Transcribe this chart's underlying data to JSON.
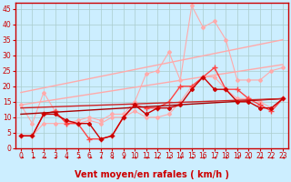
{
  "xlabel": "Vent moyen/en rafales ( km/h )",
  "bg_color": "#cceeff",
  "grid_color": "#aacccc",
  "xlim": [
    -0.5,
    23.5
  ],
  "ylim": [
    0,
    47
  ],
  "yticks": [
    0,
    5,
    10,
    15,
    20,
    25,
    30,
    35,
    40,
    45
  ],
  "xticks": [
    0,
    1,
    2,
    3,
    4,
    5,
    6,
    7,
    8,
    9,
    10,
    11,
    12,
    13,
    14,
    15,
    16,
    17,
    18,
    19,
    20,
    21,
    22,
    23
  ],
  "series": [
    {
      "x": [
        0,
        23
      ],
      "y": [
        18,
        35
      ],
      "color": "#ffaaaa",
      "lw": 1.0,
      "marker": null,
      "ms": 0
    },
    {
      "x": [
        0,
        23
      ],
      "y": [
        14,
        27
      ],
      "color": "#ffaaaa",
      "lw": 1.0,
      "marker": null,
      "ms": 0
    },
    {
      "x": [
        0,
        1,
        2,
        3,
        4,
        5,
        6,
        7,
        8,
        9,
        10,
        11,
        12,
        13,
        14,
        15,
        16,
        17,
        18,
        19,
        20,
        21,
        22,
        23
      ],
      "y": [
        14,
        8,
        18,
        12,
        8,
        9,
        10,
        9,
        11,
        11,
        15,
        24,
        25,
        31,
        22,
        46,
        39,
        41,
        35,
        22,
        22,
        22,
        25,
        26
      ],
      "color": "#ffaaaa",
      "lw": 0.8,
      "marker": "D",
      "ms": 2.0
    },
    {
      "x": [
        0,
        1,
        2,
        3,
        4,
        5,
        6,
        7,
        8,
        9,
        10,
        11,
        12,
        13,
        14,
        15,
        16,
        17,
        18,
        19,
        20,
        21,
        22,
        23
      ],
      "y": [
        4,
        4,
        8,
        8,
        8,
        8,
        9,
        8,
        10,
        10,
        12,
        10,
        10,
        11,
        15,
        20,
        23,
        23,
        19,
        16,
        16,
        15,
        13,
        16
      ],
      "color": "#ffaaaa",
      "lw": 0.8,
      "marker": "D",
      "ms": 2.0
    },
    {
      "x": [
        0,
        1,
        2,
        3,
        4,
        5,
        6,
        7,
        8,
        9,
        10,
        11,
        12,
        13,
        14,
        15,
        16,
        17,
        18,
        19,
        20,
        21,
        22,
        23
      ],
      "y": [
        4,
        4,
        11,
        12,
        8,
        8,
        3,
        3,
        4,
        10,
        14,
        13,
        13,
        15,
        20,
        20,
        23,
        26,
        19,
        19,
        16,
        14,
        12,
        16
      ],
      "color": "#ff4444",
      "lw": 1.0,
      "marker": "+",
      "ms": 4.0
    },
    {
      "x": [
        0,
        23
      ],
      "y": [
        11,
        16
      ],
      "color": "#aa0000",
      "lw": 1.0,
      "marker": null,
      "ms": 0
    },
    {
      "x": [
        0,
        23
      ],
      "y": [
        13,
        16
      ],
      "color": "#cc2222",
      "lw": 1.0,
      "marker": null,
      "ms": 0
    },
    {
      "x": [
        0,
        1,
        2,
        3,
        4,
        5,
        6,
        7,
        8,
        9,
        10,
        11,
        12,
        13,
        14,
        15,
        16,
        17,
        18,
        19,
        20,
        21,
        22,
        23
      ],
      "y": [
        4,
        4,
        11,
        11,
        9,
        8,
        8,
        3,
        4,
        10,
        14,
        11,
        13,
        13,
        14,
        19,
        23,
        19,
        19,
        15,
        15,
        13,
        13,
        16
      ],
      "color": "#cc0000",
      "lw": 1.0,
      "marker": "D",
      "ms": 2.0
    }
  ],
  "arrow_directions": [
    0,
    0,
    0,
    45,
    45,
    0,
    0,
    45,
    45,
    45,
    45,
    45,
    45,
    45,
    45,
    45,
    45,
    45,
    45,
    45,
    45,
    45,
    45,
    45
  ],
  "label_color": "#cc0000",
  "axis_color": "#cc0000",
  "tick_color": "#cc0000",
  "tick_fontsize": 5.5,
  "xlabel_fontsize": 7.0
}
